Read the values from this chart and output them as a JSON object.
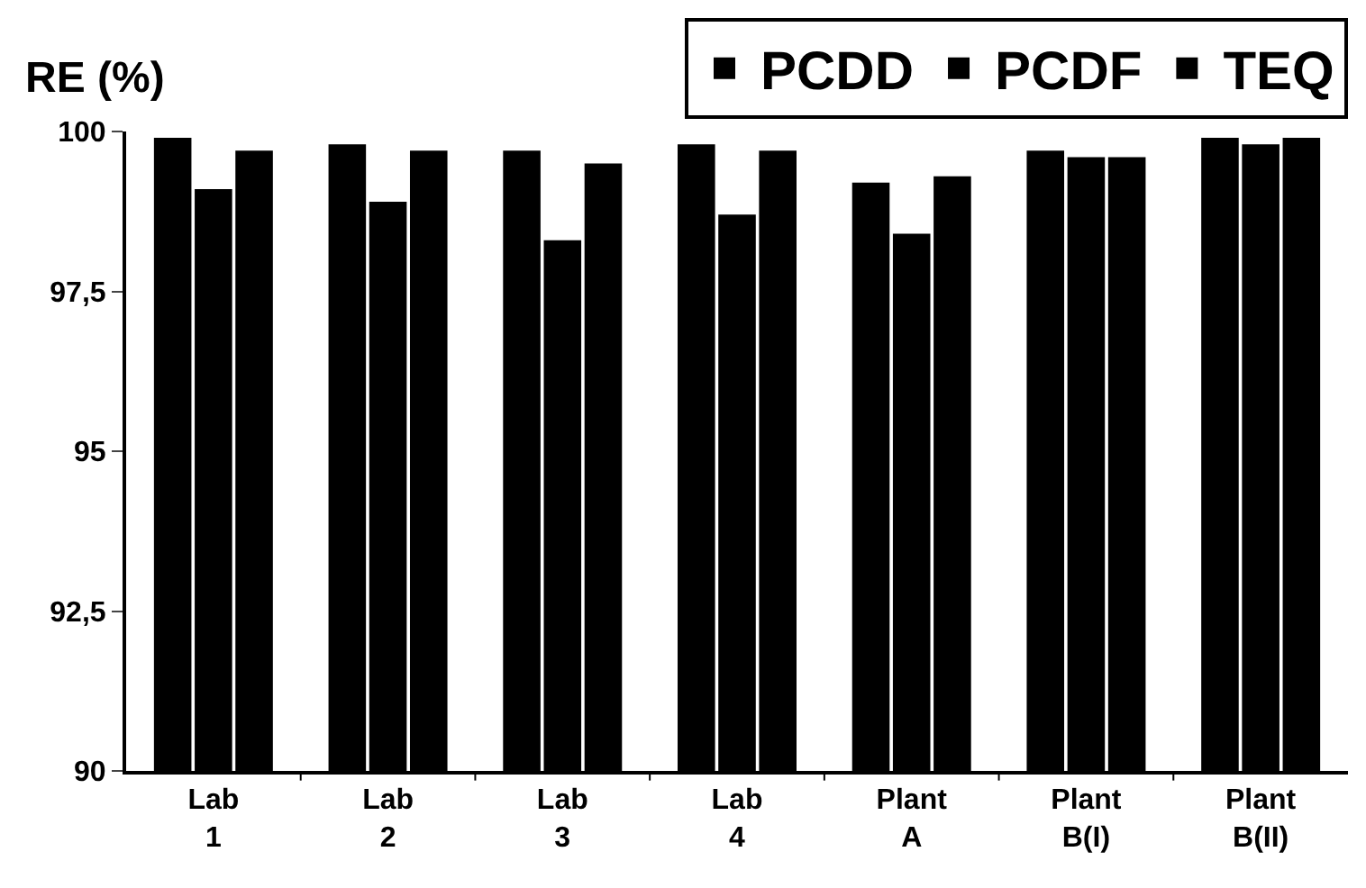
{
  "chart_data": {
    "type": "bar",
    "ylabel": "RE (%)",
    "categories": [
      "Lab 1",
      "Lab 2",
      "Lab 3",
      "Lab 4",
      "Plant A",
      "Plant B(I)",
      "Plant B(II)"
    ],
    "series": [
      {
        "name": "PCDD",
        "color": "#000000",
        "values": [
          99.9,
          99.8,
          99.7,
          99.8,
          99.2,
          99.7,
          99.9
        ]
      },
      {
        "name": "PCDF",
        "color": "#000000",
        "values": [
          99.1,
          98.9,
          98.3,
          98.7,
          98.4,
          99.6,
          99.8
        ]
      },
      {
        "name": "TEQ",
        "color": "#000000",
        "values": [
          99.7,
          99.7,
          99.5,
          99.7,
          99.3,
          99.6,
          99.9
        ]
      }
    ],
    "ylim": [
      90,
      100
    ],
    "yticks": [
      90,
      {
        "value": 92.5,
        "label": "92,5"
      },
      95,
      {
        "value": 97.5,
        "label": "97,5"
      },
      100
    ],
    "grid": false,
    "legend": "top right"
  }
}
